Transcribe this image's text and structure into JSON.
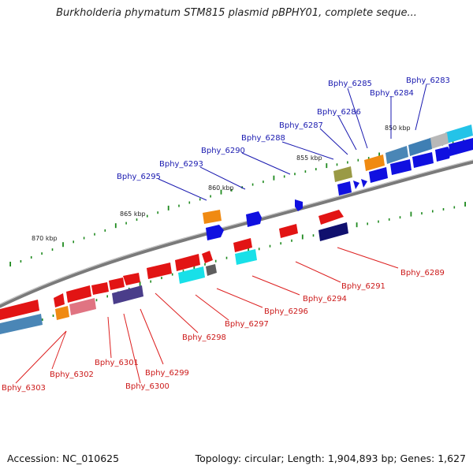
{
  "title": "Burkholderia phymatum STM815 plasmid pBPHY01, complete seque...",
  "footer": {
    "accession": "Accession: NC_010625",
    "summary": "Topology: circular; Length: 1,904,893 bp; Genes: 1,627"
  },
  "scale_labels": [
    "850 kbp",
    "855 kbp",
    "860 kbp",
    "865 kbp",
    "870 kbp"
  ],
  "genes_top": [
    "Bphy_6283",
    "Bphy_6284",
    "Bphy_6285",
    "Bphy_6286",
    "Bphy_6287",
    "Bphy_6288",
    "Bphy_6290",
    "Bphy_6293",
    "Bphy_6295"
  ],
  "genes_bottom": [
    "Bphy_6289",
    "Bphy_6291",
    "Bphy_6294",
    "Bphy_6296",
    "Bphy_6297",
    "Bphy_6298",
    "Bphy_6299",
    "Bphy_6300",
    "Bphy_6301",
    "Bphy_6302",
    "Bphy_6303"
  ],
  "colors": {
    "top_label": "#1a1ab0",
    "bottom_label": "#cc1a1a",
    "backbone": "#888888",
    "tick": "#1f8a1f"
  }
}
